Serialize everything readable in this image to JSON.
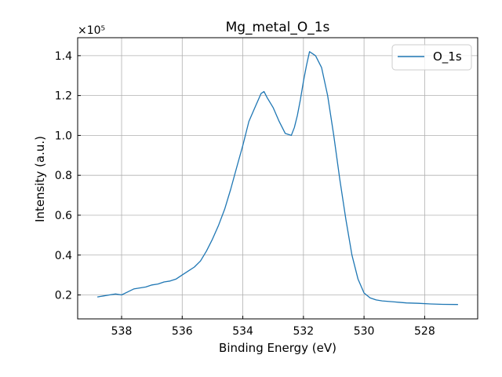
{
  "chart_data": {
    "type": "line",
    "title": "Mg_metal_O_1s",
    "xlabel": "Binding Energy (eV)",
    "ylabel": "Intensity (a.u.)",
    "y_multiplier_label": "×10⁵",
    "xlim": [
      539.45,
      526.25
    ],
    "ylim": [
      0.08,
      1.49
    ],
    "x_axis_inverted": true,
    "grid": true,
    "legend_position": "upper right",
    "xticks": [
      538,
      536,
      534,
      532,
      530,
      528
    ],
    "yticks": [
      0.2,
      0.4,
      0.6,
      0.8,
      1.0,
      1.2,
      1.4
    ],
    "xtick_labels": [
      "538",
      "536",
      "534",
      "532",
      "530",
      "528"
    ],
    "ytick_labels": [
      "0.2",
      "0.4",
      "0.6",
      "0.8",
      "1.0",
      "1.2",
      "1.4"
    ],
    "series": [
      {
        "name": "O_1s",
        "color": "#1f77b4",
        "points": [
          [
            538.8,
            0.19
          ],
          [
            538.6,
            0.195
          ],
          [
            538.4,
            0.2
          ],
          [
            538.2,
            0.205
          ],
          [
            538.0,
            0.2
          ],
          [
            537.8,
            0.215
          ],
          [
            537.6,
            0.23
          ],
          [
            537.4,
            0.235
          ],
          [
            537.2,
            0.24
          ],
          [
            537.0,
            0.25
          ],
          [
            536.8,
            0.255
          ],
          [
            536.6,
            0.265
          ],
          [
            536.4,
            0.27
          ],
          [
            536.2,
            0.28
          ],
          [
            536.0,
            0.3
          ],
          [
            535.8,
            0.32
          ],
          [
            535.6,
            0.34
          ],
          [
            535.4,
            0.37
          ],
          [
            535.2,
            0.42
          ],
          [
            535.0,
            0.48
          ],
          [
            534.8,
            0.55
          ],
          [
            534.6,
            0.63
          ],
          [
            534.4,
            0.73
          ],
          [
            534.2,
            0.84
          ],
          [
            534.0,
            0.95
          ],
          [
            533.8,
            1.07
          ],
          [
            533.6,
            1.14
          ],
          [
            533.4,
            1.21
          ],
          [
            533.3,
            1.22
          ],
          [
            533.2,
            1.19
          ],
          [
            533.0,
            1.14
          ],
          [
            532.8,
            1.07
          ],
          [
            532.6,
            1.01
          ],
          [
            532.4,
            1.0
          ],
          [
            532.3,
            1.04
          ],
          [
            532.2,
            1.1
          ],
          [
            532.1,
            1.18
          ],
          [
            532.0,
            1.27
          ],
          [
            531.9,
            1.35
          ],
          [
            531.8,
            1.42
          ],
          [
            531.7,
            1.41
          ],
          [
            531.6,
            1.4
          ],
          [
            531.4,
            1.34
          ],
          [
            531.2,
            1.2
          ],
          [
            531.0,
            1.0
          ],
          [
            530.8,
            0.78
          ],
          [
            530.6,
            0.58
          ],
          [
            530.4,
            0.4
          ],
          [
            530.2,
            0.28
          ],
          [
            530.0,
            0.21
          ],
          [
            529.8,
            0.185
          ],
          [
            529.6,
            0.175
          ],
          [
            529.4,
            0.17
          ],
          [
            529.0,
            0.165
          ],
          [
            528.6,
            0.16
          ],
          [
            528.2,
            0.158
          ],
          [
            527.8,
            0.155
          ],
          [
            527.4,
            0.153
          ],
          [
            526.9,
            0.152
          ]
        ]
      }
    ]
  }
}
